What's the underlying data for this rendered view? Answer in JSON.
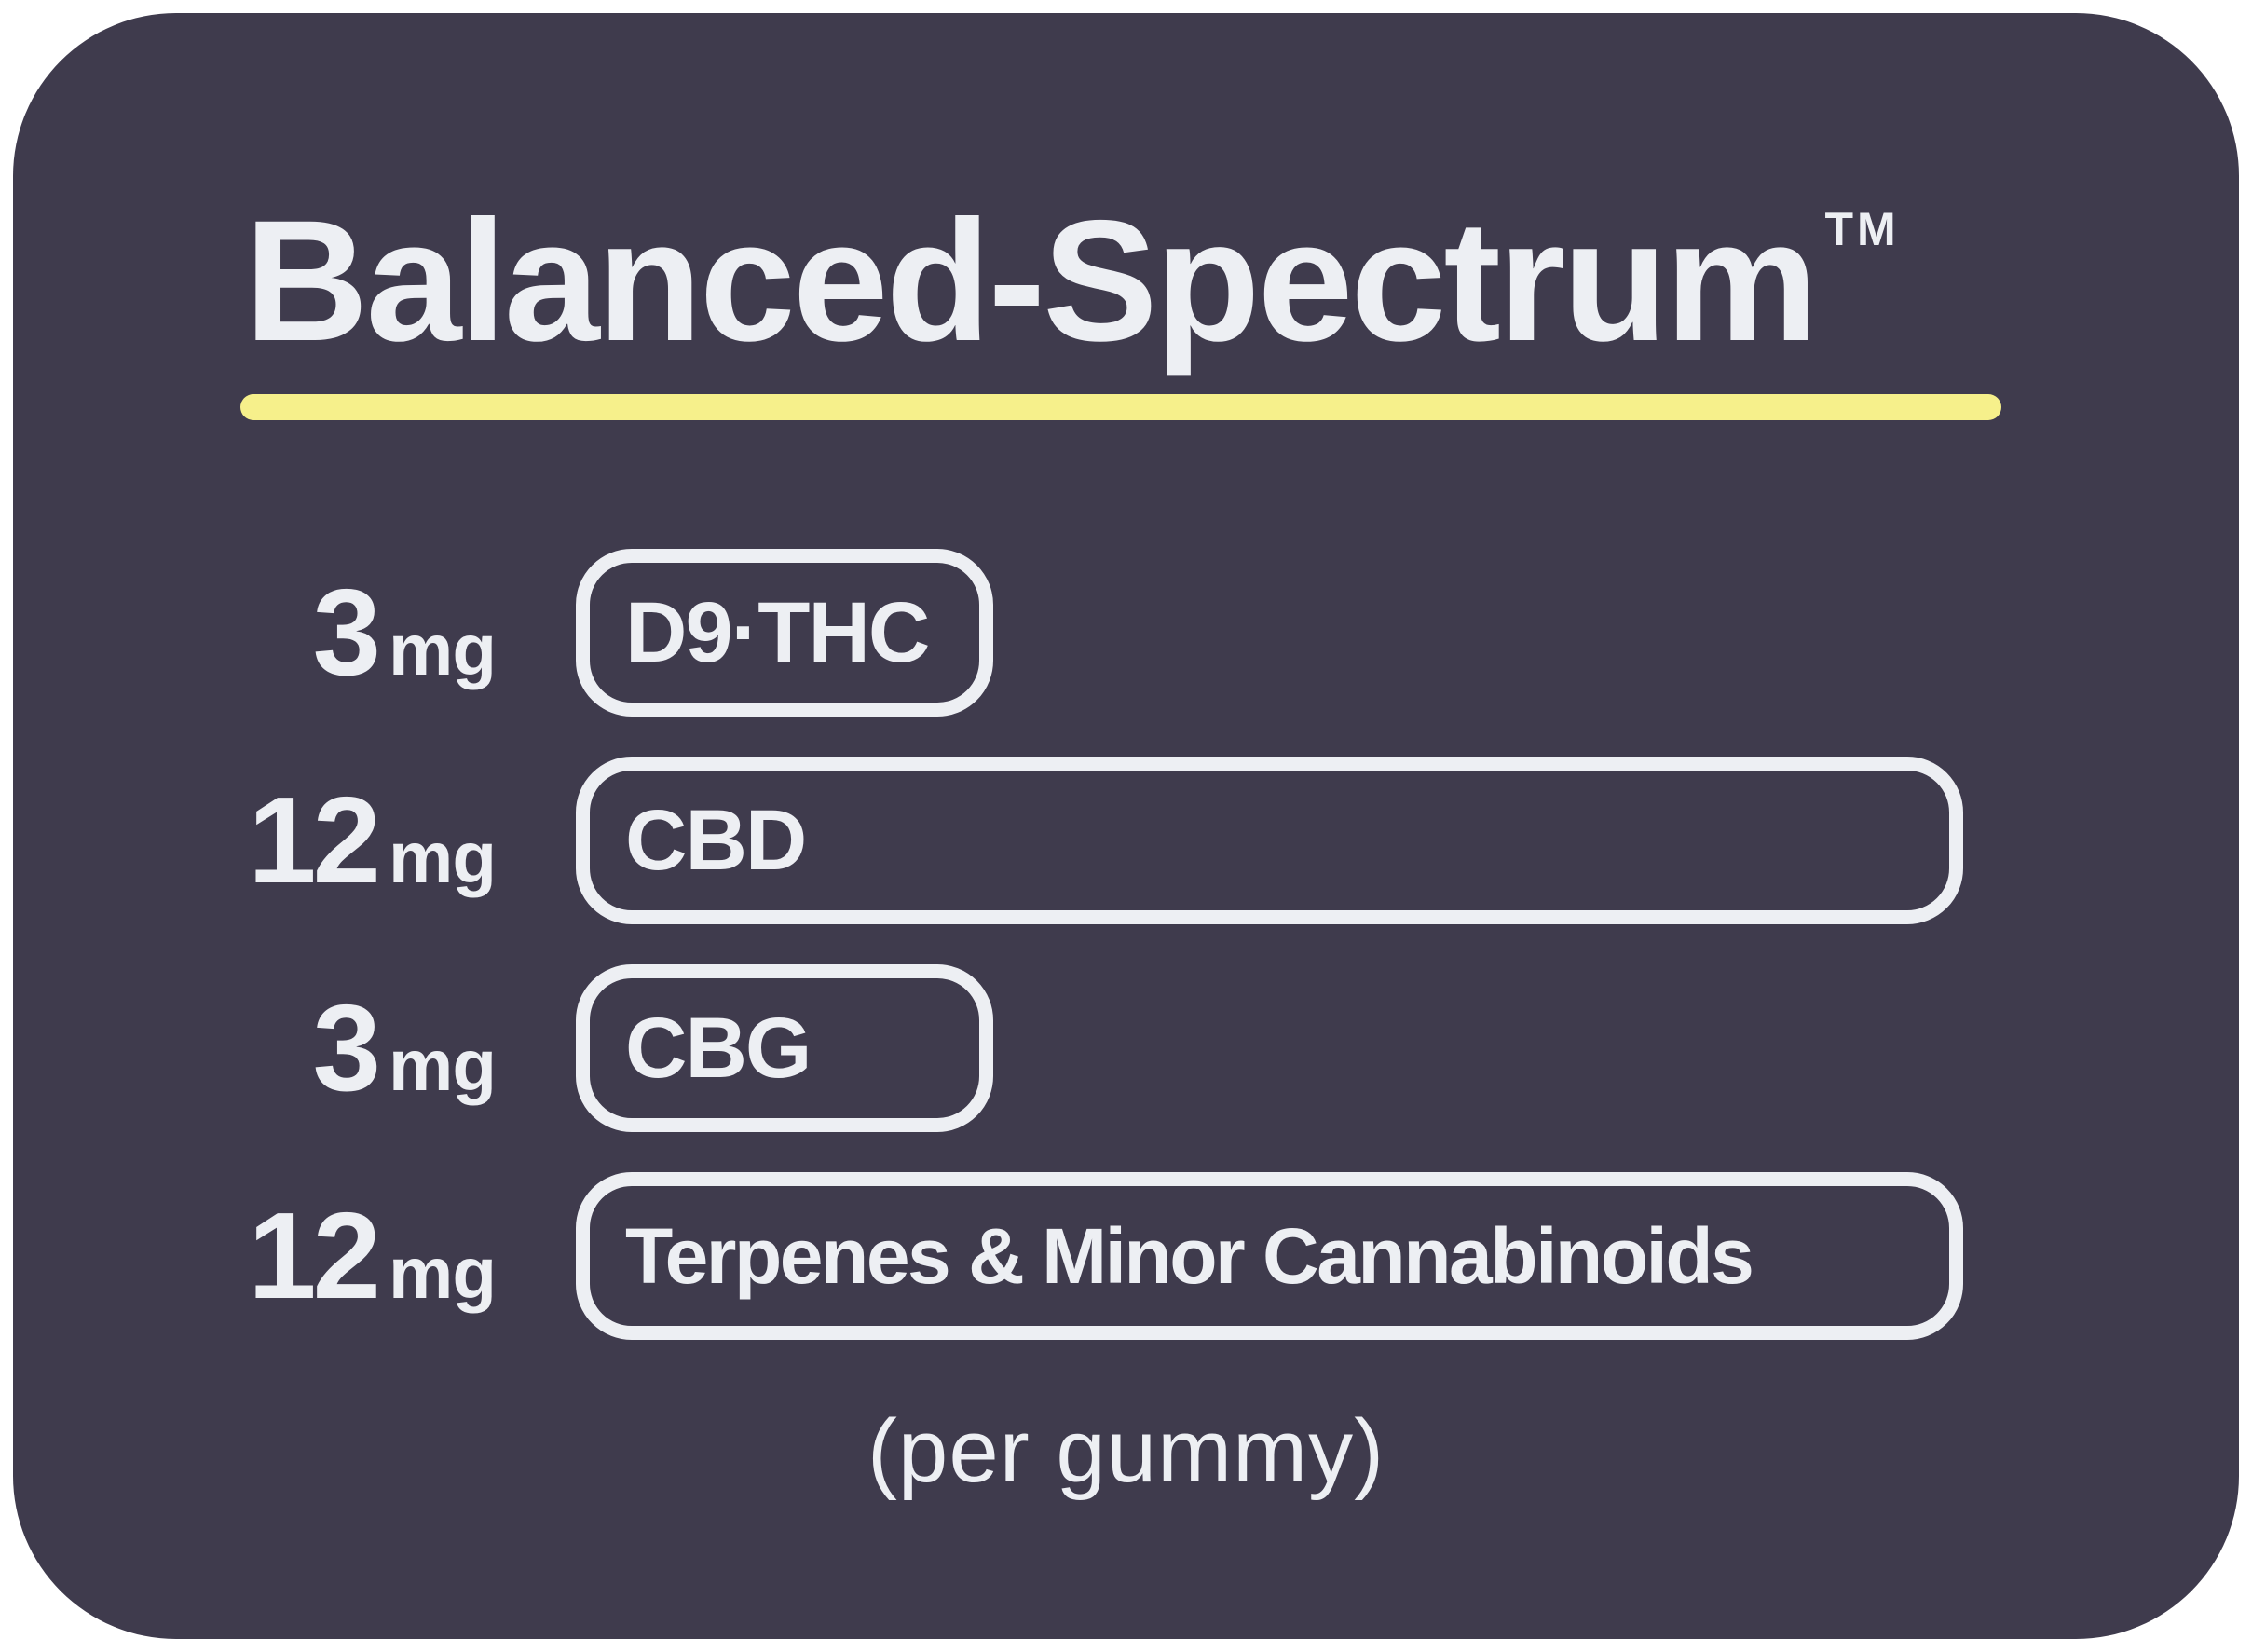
{
  "title": {
    "text": "Balanced-Spectrum",
    "trademark": "TM"
  },
  "rows": [
    {
      "amount": "3",
      "unit": "mg",
      "label": "D9·THC"
    },
    {
      "amount": "12",
      "unit": "mg",
      "label": "CBD"
    },
    {
      "amount": "3",
      "unit": "mg",
      "label": "CBG"
    },
    {
      "amount": "12",
      "unit": "mg",
      "label": "Terpenes & Minor Cannabinoids"
    }
  ],
  "footnote": "(per gummy)",
  "colors": {
    "page_background": "#FFFFFF",
    "card_background": "#3F3B4D",
    "text": "#EDEFF3",
    "underline_accent": "#F6F08B"
  },
  "chart_data": {
    "type": "bar",
    "title": "Balanced-Spectrum™",
    "categories": [
      "D9·THC",
      "CBD",
      "CBG",
      "Terpenes & Minor Cannabinoids"
    ],
    "values": [
      3,
      12,
      3,
      12
    ],
    "unit": "mg",
    "note": "(per gummy)",
    "orientation": "horizontal",
    "bar_style": "outlined rounded pills, width proportional to mg amount",
    "value_label_position": "left of bar"
  }
}
